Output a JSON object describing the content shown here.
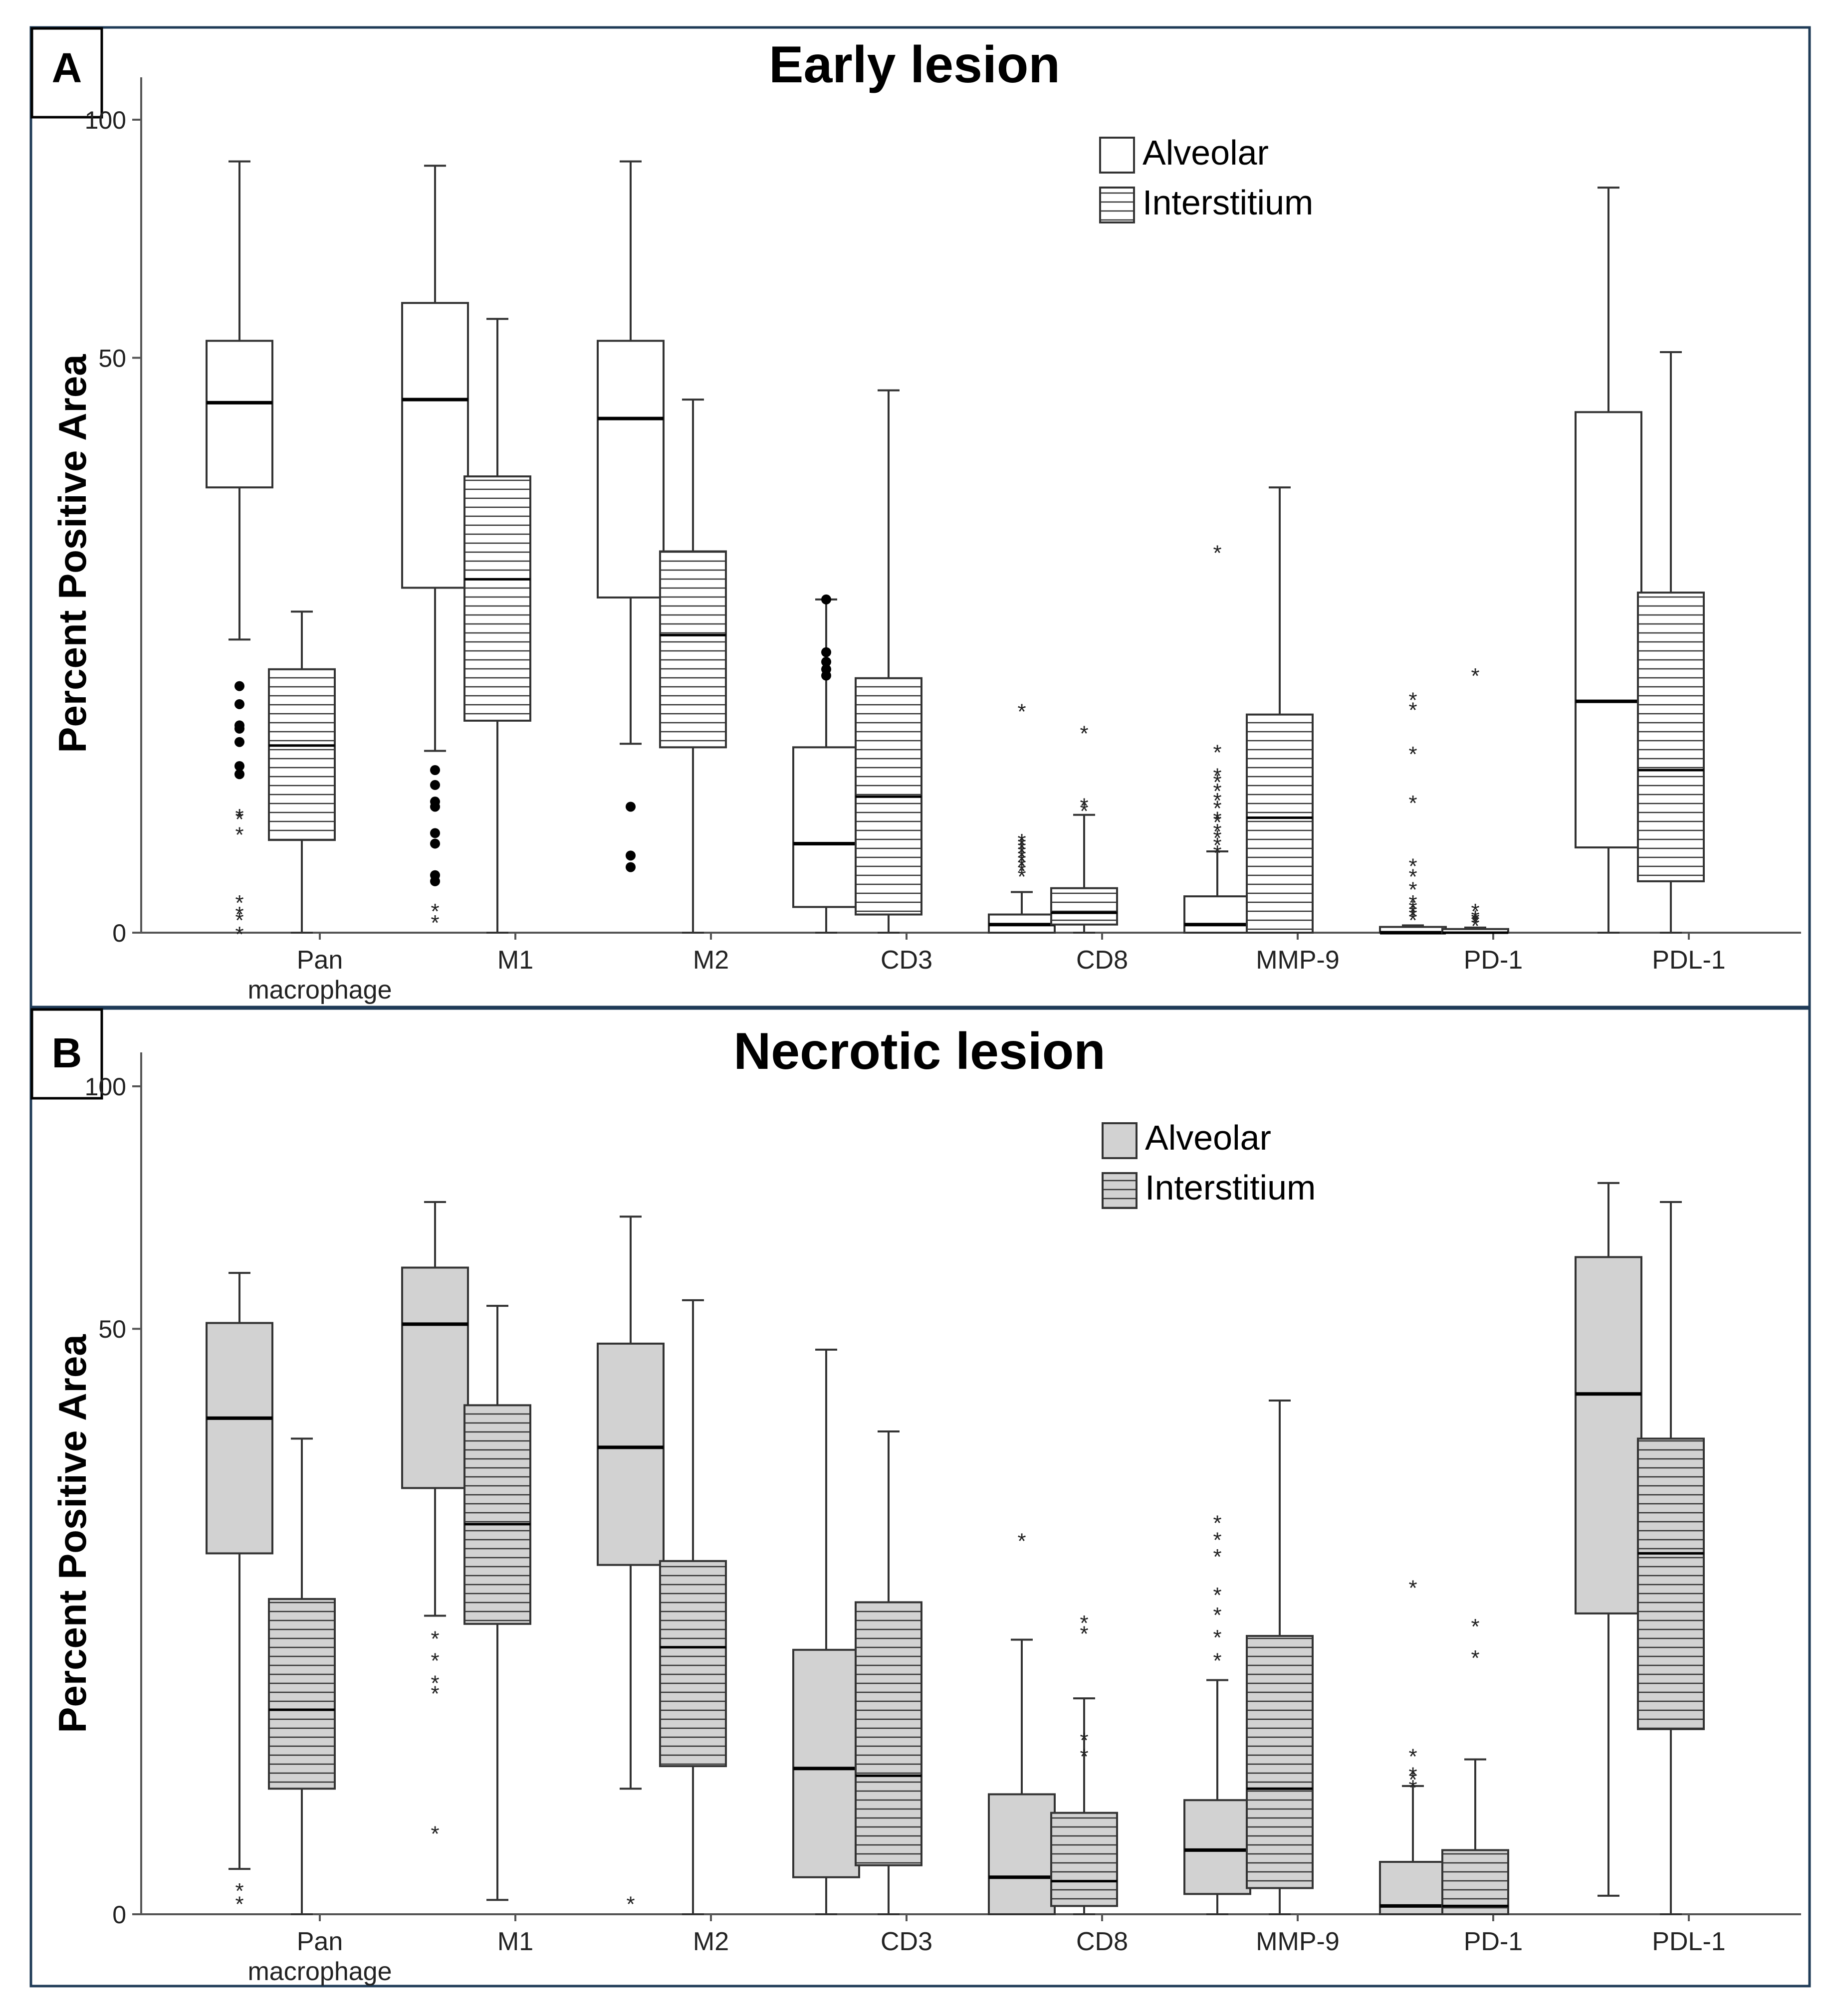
{
  "chart_data": [
    {
      "type": "boxplot",
      "panel_label": "A",
      "title": "Early lesion",
      "ylabel": "Percent Positive Area",
      "y_scale": "square-root",
      "yticks": [
        0,
        50,
        100
      ],
      "ylim": [
        0,
        100
      ],
      "categories": [
        "Pan\nmacrophage",
        "M1",
        "M2",
        "CD3",
        "CD8",
        "MMP-9",
        "PD-1",
        "PDL-1"
      ],
      "legend": {
        "position": "top-center",
        "entries": [
          "Alveolar",
          "Interstitium"
        ]
      },
      "series": [
        {
          "name": "Alveolar",
          "fill": "#ffffff",
          "hatched": false,
          "boxes": [
            {
              "category": "Pan\nmacrophage",
              "min": 13,
              "q1": 30,
              "median": 42.5,
              "q3": 53,
              "max": 90,
              "outliers_circle": [
                9.2,
                7.9,
                6.5,
                6.3,
                5.5,
                4.2,
                3.8
              ],
              "outliers_star": [
                2.1,
                2,
                1.5,
                0.15,
                0.06,
                0.03,
                0
              ]
            },
            {
              "category": "M1",
              "min": 5,
              "q1": 18,
              "median": 43,
              "q3": 60,
              "max": 89,
              "outliers_circle": [
                4,
                3.3,
                2.6,
                2.4,
                1.5,
                1.2,
                0.5,
                0.4
              ],
              "outliers_star": [
                0.08,
                0.02
              ]
            },
            {
              "category": "M2",
              "min": 5.4,
              "q1": 17,
              "median": 40,
              "q3": 53,
              "max": 90,
              "outliers_circle": [
                2.4,
                0.9,
                0.65
              ],
              "outliers_star": []
            },
            {
              "category": "CD3",
              "min": 0,
              "q1": 0.1,
              "median": 1.2,
              "q3": 5.2,
              "max": 16.8,
              "outliers_circle": [
                16.8,
                11.9,
                11.1,
                10.5,
                10
              ],
              "outliers_star": []
            },
            {
              "category": "CD8",
              "min": 0,
              "q1": 0,
              "median": 0.01,
              "q3": 0.05,
              "max": 0.25,
              "outliers_star": [
                1.3,
                1.2,
                1.1,
                1,
                0.9,
                0.8,
                0.7,
                0.6,
                0.5,
                7.5
              ],
              "outliers_circle": []
            },
            {
              "category": "MMP-9",
              "min": 0,
              "q1": 0,
              "median": 0.01,
              "q3": 0.2,
              "max": 1,
              "outliers_star": [
                22,
                5,
                3.8,
                3.5,
                3.1,
                2.7,
                2.4,
                2,
                1.9,
                1.6,
                1.4,
                1.2,
                1
              ],
              "outliers_circle": []
            },
            {
              "category": "PD-1",
              "min": 0,
              "q1": 0,
              "median": 0,
              "q3": 0.005,
              "max": 0.008,
              "outliers_star": [
                8.3,
                7.6,
                4.9,
                2.6,
                0.7,
                0.5,
                0.3,
                0.15,
                0.1,
                0.07,
                0.05,
                0.03
              ],
              "outliers_circle": []
            },
            {
              "category": "PDL-1",
              "min": 0,
              "q1": 1.1,
              "median": 8.1,
              "q3": 41,
              "max": 84,
              "outliers_circle": [],
              "outliers_star": []
            }
          ]
        },
        {
          "name": "Interstitium",
          "fill": "#ffffff",
          "hatched": true,
          "boxes": [
            {
              "category": "Pan\nmacrophage",
              "min": 0,
              "q1": 1.3,
              "median": 5.3,
              "q3": 10.5,
              "max": 15.6,
              "outliers_circle": [],
              "outliers_star": []
            },
            {
              "category": "M1",
              "min": 0,
              "q1": 6.8,
              "median": 18.9,
              "q3": 31.5,
              "max": 57,
              "outliers_circle": [],
              "outliers_star": []
            },
            {
              "category": "M2",
              "min": 0,
              "q1": 5.2,
              "median": 13.4,
              "q3": 22,
              "max": 43,
              "outliers_circle": [],
              "outliers_star": []
            },
            {
              "category": "CD3",
              "min": 0,
              "q1": 0.05,
              "median": 2.8,
              "q3": 9.8,
              "max": 44.5,
              "outliers_circle": [],
              "outliers_star": []
            },
            {
              "category": "CD8",
              "min": 0,
              "q1": 0.01,
              "median": 0.06,
              "q3": 0.3,
              "max": 2.1,
              "outliers_star": [
                6.1,
                2.5,
                2.3
              ],
              "outliers_circle": []
            },
            {
              "category": "MMP-9",
              "min": 0,
              "q1": 0,
              "median": 2,
              "q3": 7.2,
              "max": 30,
              "outliers_circle": [],
              "outliers_star": []
            },
            {
              "category": "PD-1",
              "min": 0,
              "q1": 0,
              "median": 0,
              "q3": 0.002,
              "max": 0.004,
              "outliers_star": [
                10.1,
                0.08,
                0.04,
                0.03,
                0.02,
                0.01
              ],
              "outliers_circle": []
            },
            {
              "category": "PDL-1",
              "min": 0,
              "q1": 0.4,
              "median": 4,
              "q3": 17.5,
              "max": 51,
              "outliers_circle": [],
              "outliers_star": []
            }
          ]
        }
      ]
    },
    {
      "type": "boxplot",
      "panel_label": "B",
      "title": "Necrotic lesion",
      "ylabel": "Percent Positive Area",
      "y_scale": "square-root",
      "yticks": [
        0,
        50,
        100
      ],
      "ylim": [
        0,
        100
      ],
      "categories": [
        "Pan\nmacrophage",
        "M1",
        "M2",
        "CD3",
        "CD8",
        "MMP-9",
        "PD-1",
        "PDL-1"
      ],
      "legend": {
        "position": "top-center",
        "entries": [
          "Alveolar",
          "Interstitium"
        ]
      },
      "series": [
        {
          "name": "Alveolar",
          "fill": "#d2d2d2",
          "hatched": false,
          "boxes": [
            {
              "category": "Pan\nmacrophage",
              "min": 0.3,
              "q1": 19,
              "median": 35.9,
              "q3": 51,
              "max": 60,
              "outliers_circle": [],
              "outliers_star": [
                0.09,
                0.02
              ]
            },
            {
              "category": "M1",
              "min": 13,
              "q1": 26.5,
              "median": 50.8,
              "q3": 61,
              "max": 74,
              "outliers_circle": [],
              "outliers_star": [
                11.2,
                9.5,
                7.9,
                7.2,
                0.98
              ]
            },
            {
              "category": "M2",
              "min": 2.3,
              "q1": 17.8,
              "median": 31.8,
              "q3": 47.5,
              "max": 71,
              "outliers_circle": [],
              "outliers_star": [
                0.02
              ]
            },
            {
              "category": "CD3",
              "min": 0,
              "q1": 0.2,
              "median": 3.1,
              "q3": 10.2,
              "max": 46.5,
              "outliers_circle": [],
              "outliers_star": []
            },
            {
              "category": "CD8",
              "min": 0,
              "q1": 0,
              "median": 0.2,
              "q3": 2.1,
              "max": 11,
              "outliers_circle": [],
              "outliers_star": [
                20.5
              ]
            },
            {
              "category": "MMP-9",
              "min": 0,
              "q1": 0.06,
              "median": 0.6,
              "q3": 1.9,
              "max": 8,
              "outliers_circle": [],
              "outliers_star": [
                22.5,
                20.6,
                18.8,
                15,
                13.2,
                11.3,
                9.5
              ]
            },
            {
              "category": "PD-1",
              "min": 0,
              "q1": 0,
              "median": 0.01,
              "q3": 0.4,
              "max": 2.4,
              "outliers_circle": [],
              "outliers_star": [
                3.7,
                2.9,
                2.7,
                2.4,
                15.7
              ]
            },
            {
              "category": "PDL-1",
              "min": 0.05,
              "q1": 13.2,
              "median": 39.5,
              "q3": 63,
              "max": 78,
              "outliers_circle": [],
              "outliers_star": []
            }
          ]
        },
        {
          "name": "Interstitium",
          "fill": "#d2d2d2",
          "hatched": true,
          "boxes": [
            {
              "category": "Pan\nmacrophage",
              "min": 0,
              "q1": 2.3,
              "median": 6.1,
              "q3": 14.5,
              "max": 33,
              "outliers_circle": [],
              "outliers_star": []
            },
            {
              "category": "M1",
              "min": 0.03,
              "q1": 12.3,
              "median": 22.2,
              "q3": 37.8,
              "max": 54,
              "outliers_circle": [],
              "outliers_star": []
            },
            {
              "category": "M2",
              "min": 0,
              "q1": 3.2,
              "median": 10.4,
              "q3": 18.2,
              "max": 55,
              "outliers_circle": [],
              "outliers_star": []
            },
            {
              "category": "CD3",
              "min": 0,
              "q1": 0.35,
              "median": 2.8,
              "q3": 14.2,
              "max": 34,
              "outliers_circle": [],
              "outliers_star": []
            },
            {
              "category": "CD8",
              "min": 0,
              "q1": 0.01,
              "median": 0.16,
              "q3": 1.5,
              "max": 6.8,
              "outliers_circle": [],
              "outliers_star": [
                12.5,
                11.6,
                4.5,
                3.7
              ]
            },
            {
              "category": "MMP-9",
              "min": 0,
              "q1": 0.1,
              "median": 2.3,
              "q3": 11.3,
              "max": 38.5,
              "outliers_circle": [],
              "outliers_star": []
            },
            {
              "category": "PD-1",
              "min": 0,
              "q1": 0,
              "median": 0.01,
              "q3": 0.6,
              "max": 3.5,
              "outliers_circle": [],
              "outliers_star": [
                12.2,
                9.7
              ]
            },
            {
              "category": "PDL-1",
              "min": 0,
              "q1": 5,
              "median": 19,
              "q3": 33,
              "max": 74,
              "outliers_circle": [],
              "outliers_star": []
            }
          ]
        }
      ]
    }
  ]
}
